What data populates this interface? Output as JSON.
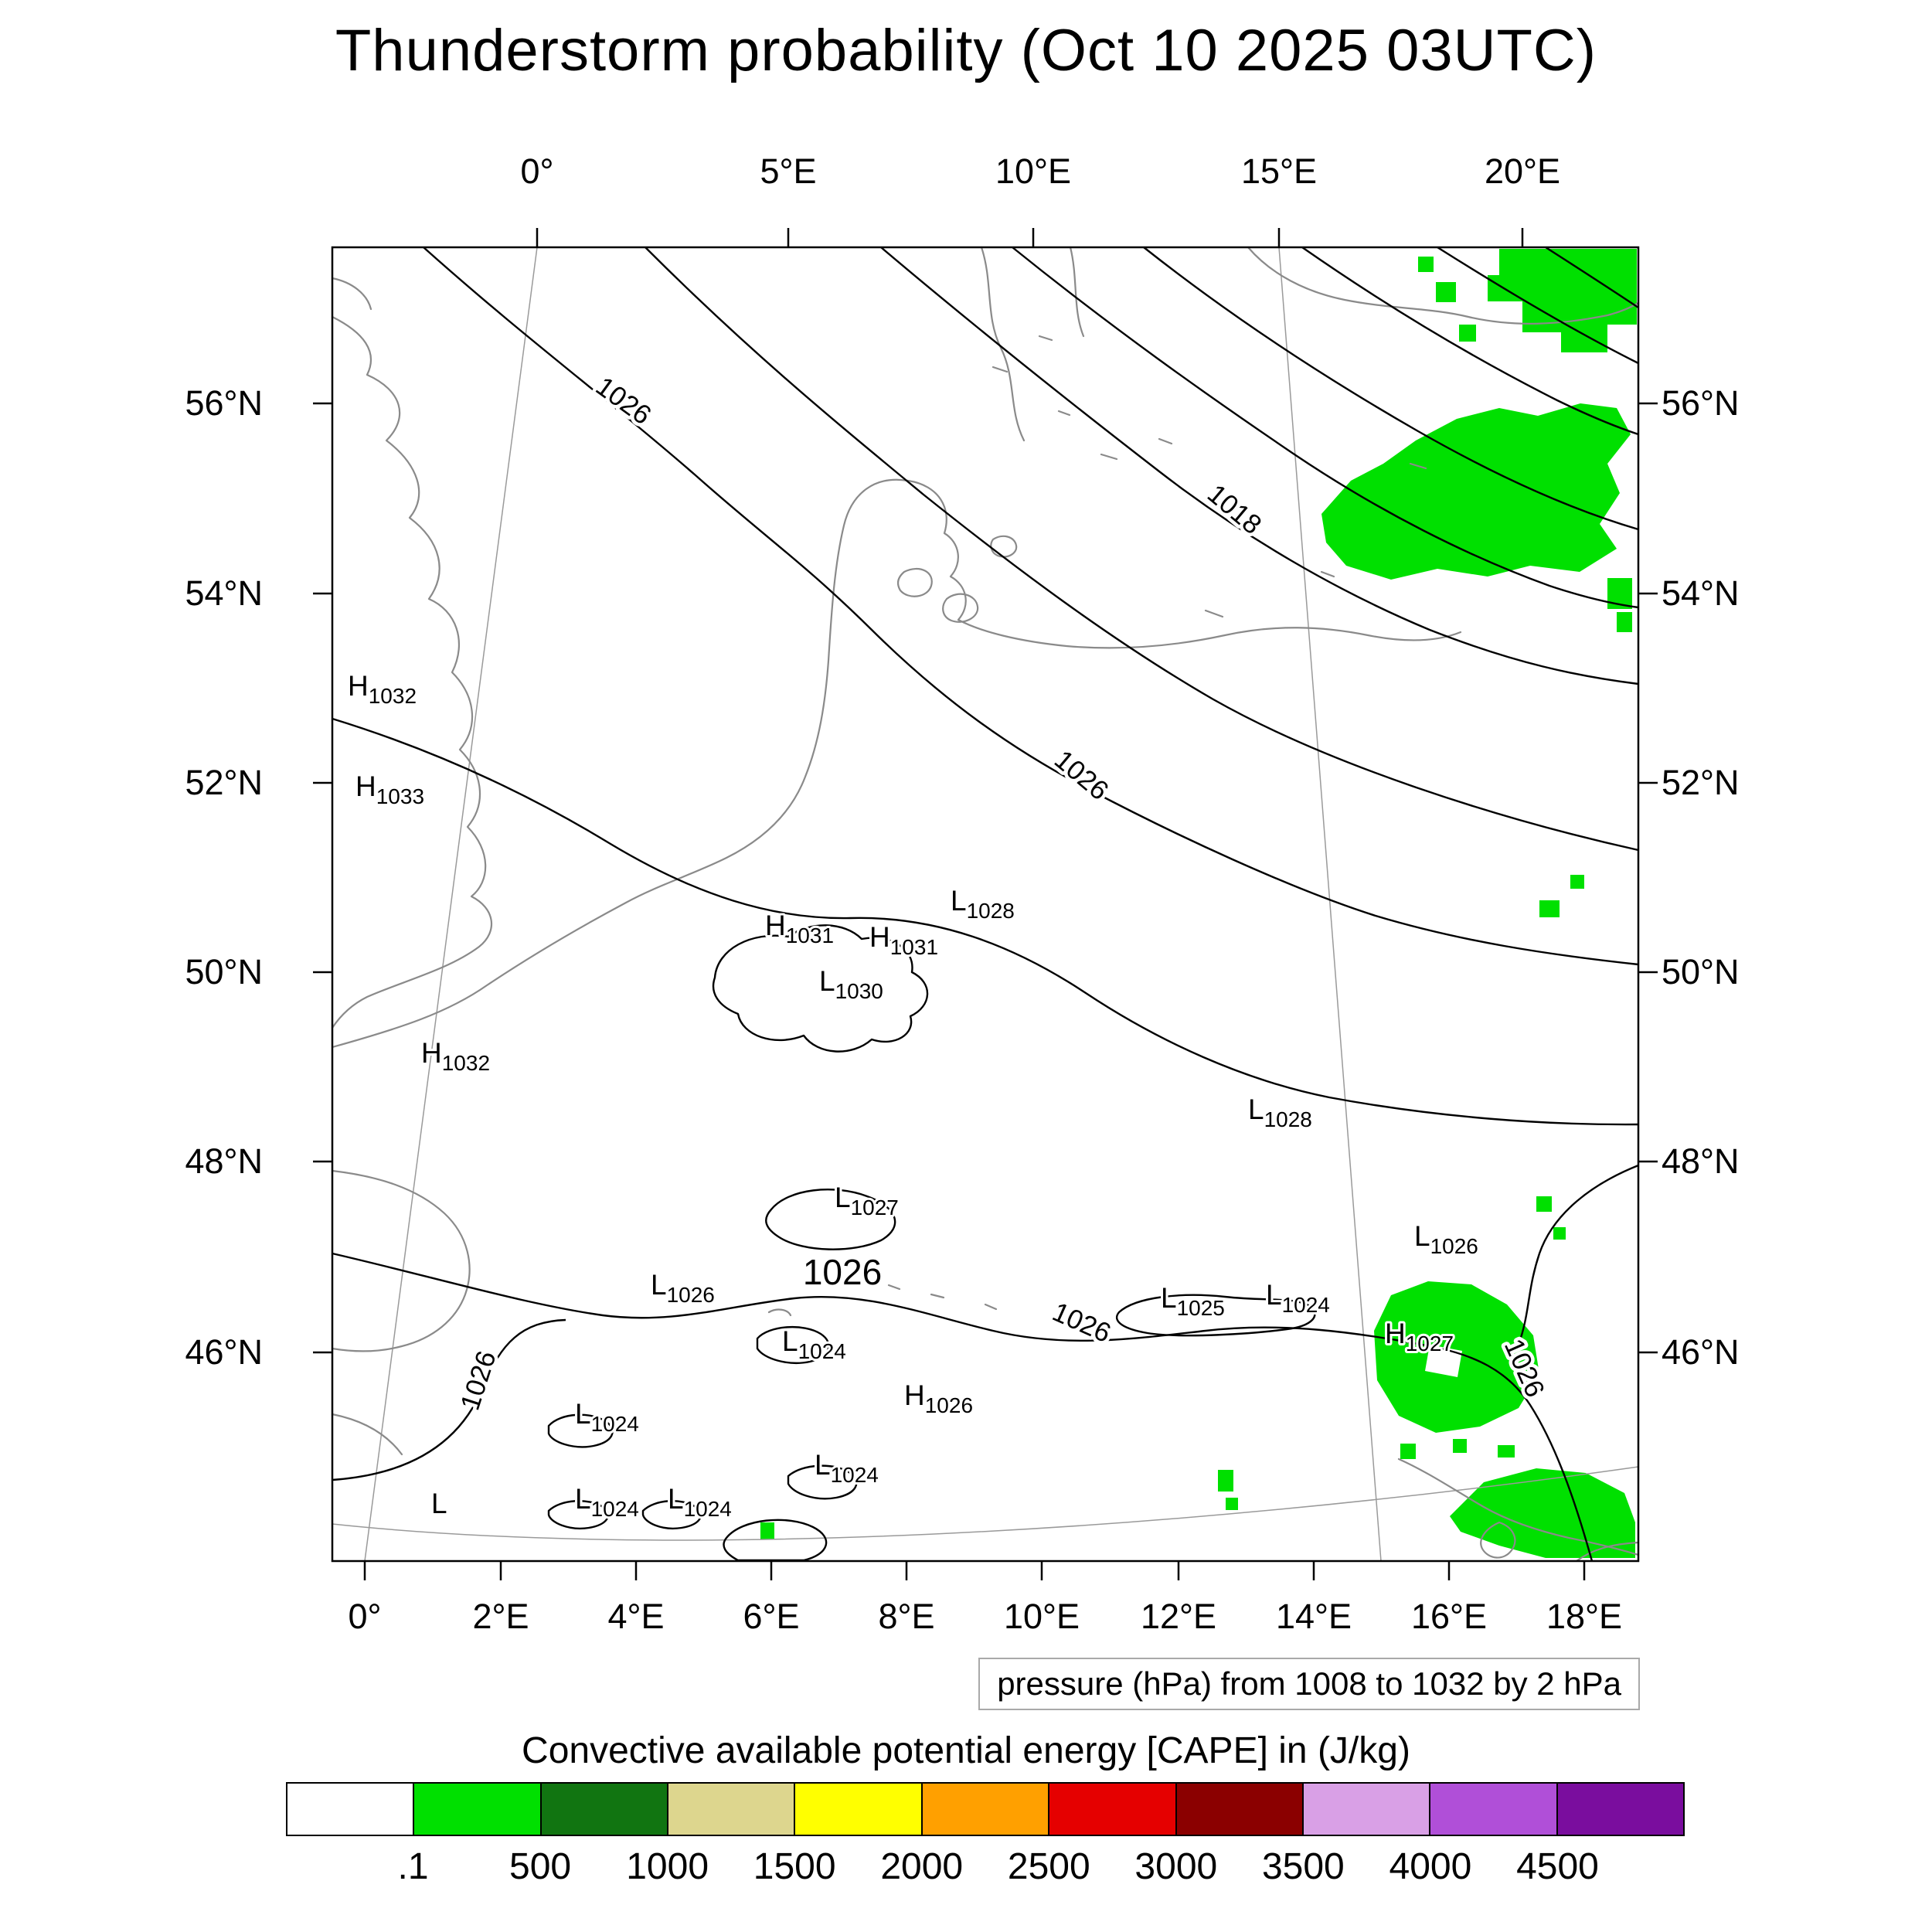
{
  "title": "Thunderstorm probability (Oct 10 2025 03UTC)",
  "axes": {
    "top": [
      "0°",
      "5°E",
      "10°E",
      "15°E",
      "20°E"
    ],
    "bottom": [
      "0°",
      "2°E",
      "4°E",
      "6°E",
      "8°E",
      "10°E",
      "12°E",
      "14°E",
      "16°E",
      "18°E"
    ],
    "left": [
      "56°N",
      "54°N",
      "52°N",
      "50°N",
      "48°N",
      "46°N"
    ],
    "right": [
      "56°N",
      "54°N",
      "52°N",
      "50°N",
      "48°N",
      "46°N"
    ]
  },
  "caption": "pressure (hPa) from 1008 to 1032 by 2 hPa",
  "colorbar": {
    "title": "Convective available potential energy [CAPE] in (J/kg)",
    "colors": [
      "#ffffff",
      "#00e000",
      "#117511",
      "#ddd68e",
      "#ffff00",
      "#ffa000",
      "#e50000",
      "#8b0000",
      "#d9a0e6",
      "#b04fd8",
      "#7a0d9e"
    ],
    "ticks": [
      ".1",
      "500",
      "1000",
      "1500",
      "2000",
      "2500",
      "3000",
      "3500",
      "4000",
      "4500"
    ]
  },
  "map": {
    "contour_labels": [
      "1026",
      "1018",
      "1026",
      "1026",
      "1026",
      "1026",
      "1026"
    ],
    "markers": [
      {
        "letter": "H",
        "value": "1032"
      },
      {
        "letter": "H",
        "value": "1033"
      },
      {
        "letter": "H",
        "value": "1032"
      },
      {
        "letter": "H",
        "value": "1031"
      },
      {
        "letter": "H",
        "value": "1031"
      },
      {
        "letter": "L",
        "value": "1030"
      },
      {
        "letter": "L",
        "value": "1028"
      },
      {
        "letter": "L",
        "value": "1028"
      },
      {
        "letter": "L",
        "value": "1027"
      },
      {
        "letter": "L",
        "value": "1026"
      },
      {
        "letter": "L",
        "value": "1024"
      },
      {
        "letter": "L",
        "value": "1025"
      },
      {
        "letter": "L",
        "value": "1024"
      },
      {
        "letter": "L",
        "value": "1026"
      },
      {
        "letter": "H",
        "value": "1027"
      },
      {
        "letter": "H",
        "value": "1026"
      },
      {
        "letter": "L",
        "value": "1024"
      },
      {
        "letter": "L",
        "value": "1024"
      },
      {
        "letter": "L",
        "value": "1024"
      },
      {
        "letter": "L",
        "value": "1024"
      },
      {
        "letter": "L",
        "value": ""
      }
    ],
    "cape_fill_color": "#00e000"
  },
  "chart_data": {
    "type": "contour_map",
    "title": "Thunderstorm probability (Oct 10 2025 03UTC)",
    "x_axis": {
      "ticks_top": [
        "0°",
        "5°E",
        "10°E",
        "15°E",
        "20°E"
      ],
      "ticks_bottom": [
        "0°",
        "2°E",
        "4°E",
        "6°E",
        "8°E",
        "10°E",
        "12°E",
        "14°E",
        "16°E",
        "18°E"
      ]
    },
    "y_axis": {
      "ticks": [
        "56°N",
        "54°N",
        "52°N",
        "50°N",
        "48°N",
        "46°N"
      ]
    },
    "isobars": {
      "variable": "pressure (hPa)",
      "from": 1008,
      "to": 1032,
      "step": 2,
      "labeled_values": [
        1018,
        1026
      ]
    },
    "pressure_centers": [
      {
        "type": "H",
        "hPa": 1032,
        "lon": -1.5,
        "lat": 53.0
      },
      {
        "type": "H",
        "hPa": 1033,
        "lon": -1.4,
        "lat": 52.0
      },
      {
        "type": "H",
        "hPa": 1032,
        "lon": -0.6,
        "lat": 49.2
      },
      {
        "type": "H",
        "hPa": 1031,
        "lon": 5.4,
        "lat": 50.3
      },
      {
        "type": "H",
        "hPa": 1031,
        "lon": 6.6,
        "lat": 50.2
      },
      {
        "type": "L",
        "hPa": 1030,
        "lon": 6.0,
        "lat": 49.9
      },
      {
        "type": "L",
        "hPa": 1028,
        "lon": 7.5,
        "lat": 50.5
      },
      {
        "type": "L",
        "hPa": 1028,
        "lon": 12.2,
        "lat": 48.6
      },
      {
        "type": "L",
        "hPa": 1027,
        "lon": 6.9,
        "lat": 47.5
      },
      {
        "type": "L",
        "hPa": 1026,
        "lon": 4.9,
        "lat": 46.6
      },
      {
        "type": "L",
        "hPa": 1024,
        "lon": 6.6,
        "lat": 46.0
      },
      {
        "type": "L",
        "hPa": 1025,
        "lon": 12.4,
        "lat": 46.4
      },
      {
        "type": "L",
        "hPa": 1024,
        "lon": 13.8,
        "lat": 46.4
      },
      {
        "type": "L",
        "hPa": 1026,
        "lon": 15.8,
        "lat": 47.1
      },
      {
        "type": "H",
        "hPa": 1027,
        "lon": 15.3,
        "lat": 45.9
      },
      {
        "type": "H",
        "hPa": 1026,
        "lon": 8.1,
        "lat": 45.3
      },
      {
        "type": "L",
        "hPa": 1024,
        "lon": 3.7,
        "lat": 45.2
      },
      {
        "type": "L",
        "hPa": 1024,
        "lon": 7.2,
        "lat": 44.7
      },
      {
        "type": "L",
        "hPa": 1024,
        "lon": 3.7,
        "lat": 44.4
      },
      {
        "type": "L",
        "hPa": 1024,
        "lon": 5.1,
        "lat": 44.4
      }
    ],
    "cape_shading": {
      "variable": "Convective available potential energy [CAPE] in (J/kg)",
      "levels": [
        0.1,
        500,
        1000,
        1500,
        2000,
        2500,
        3000,
        3500,
        4000,
        4500
      ],
      "palette": [
        "#ffffff",
        "#00e000",
        "#117511",
        "#ddd68e",
        "#ffff00",
        "#ffa000",
        "#e50000",
        "#8b0000",
        "#d9a0e6",
        "#b04fd8",
        "#7a0d9e"
      ],
      "shaded_regions": [
        {
          "level": "0.1-500 J/kg",
          "color": "#00e000",
          "approx_lon": [
            14.5,
            20.0
          ],
          "approx_lat": [
            54.3,
            57.2
          ]
        },
        {
          "level": "0.1-500 J/kg",
          "color": "#00e000",
          "approx_lon": [
            15.0,
            18.5
          ],
          "approx_lat": [
            44.3,
            46.6
          ]
        },
        {
          "level": "0.1-500 J/kg",
          "color": "#00e000",
          "approx_lon": [
            17.5,
            18.5
          ],
          "approx_lat": [
            47.2,
            47.7
          ]
        }
      ]
    }
  }
}
